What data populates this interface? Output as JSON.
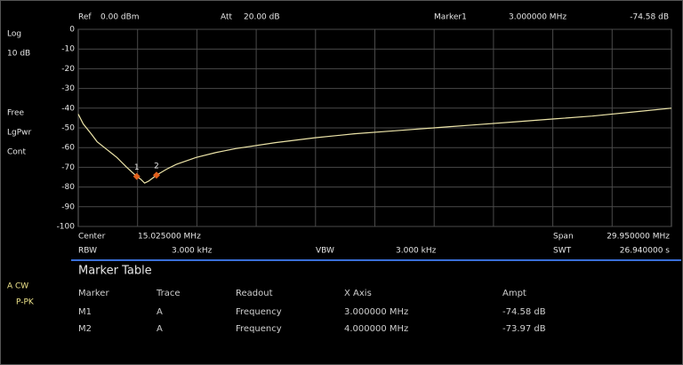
{
  "header": {
    "ref_label": "Ref",
    "ref_value": "0.00 dBm",
    "att_label": "Att",
    "att_value": "20.00 dB",
    "marker_label": "Marker1",
    "marker_x": "3.000000 MHz",
    "marker_y": "-74.58 dB"
  },
  "side": {
    "scale_type": "Log",
    "scale_div": "10 dB",
    "mode": [
      "Free",
      "LgPwr",
      "Cont"
    ],
    "trace": [
      "A CW",
      "P-PK"
    ]
  },
  "chart_data": {
    "type": "line",
    "xlim": [
      0.05,
      30
    ],
    "ylim": [
      -100,
      0
    ],
    "yticks": [
      0,
      -10,
      -20,
      -30,
      -40,
      -50,
      -60,
      -70,
      -80,
      -90,
      -100
    ],
    "grid": true,
    "color": "#ece4a8",
    "x": [
      0.05,
      0.3,
      0.7,
      1,
      1.5,
      2,
      2.5,
      3,
      3.2,
      3.4,
      3.6,
      3.8,
      4,
      4.5,
      5,
      6,
      7,
      8,
      10,
      12,
      14,
      16,
      18,
      20,
      22,
      24,
      26,
      28,
      30
    ],
    "values": [
      -43,
      -48,
      -53,
      -57,
      -61,
      -65,
      -70,
      -74.6,
      -76,
      -78,
      -77,
      -75.5,
      -74,
      -71,
      -68.5,
      -65,
      -62.5,
      -60.5,
      -57.5,
      -55,
      -53,
      -51.5,
      -50,
      -48.5,
      -47,
      -45.5,
      -44,
      -42,
      -40
    ],
    "markers": [
      {
        "label": "1",
        "x": 3,
        "y": -74.58,
        "color": "#e0601c"
      },
      {
        "label": "2",
        "x": 4,
        "y": -73.97,
        "color": "#e0601c"
      }
    ]
  },
  "footer": {
    "center_label": "Center",
    "center_value": "15.025000 MHz",
    "span_label": "Span",
    "span_value": "29.950000 MHz",
    "rbw_label": "RBW",
    "rbw_value": "3.000 kHz",
    "vbw_label": "VBW",
    "vbw_value": "3.000 kHz",
    "swt_label": "SWT",
    "swt_value": "26.940000 s"
  },
  "marker_table": {
    "title": "Marker Table",
    "columns": [
      "Marker",
      "Trace",
      "Readout",
      "X Axis",
      "Ampt"
    ],
    "rows": [
      [
        "M1",
        "A",
        "Frequency",
        "3.000000 MHz",
        "-74.58 dB"
      ],
      [
        "M2",
        "A",
        "Frequency",
        "4.000000 MHz",
        "-73.97 dB"
      ]
    ]
  }
}
